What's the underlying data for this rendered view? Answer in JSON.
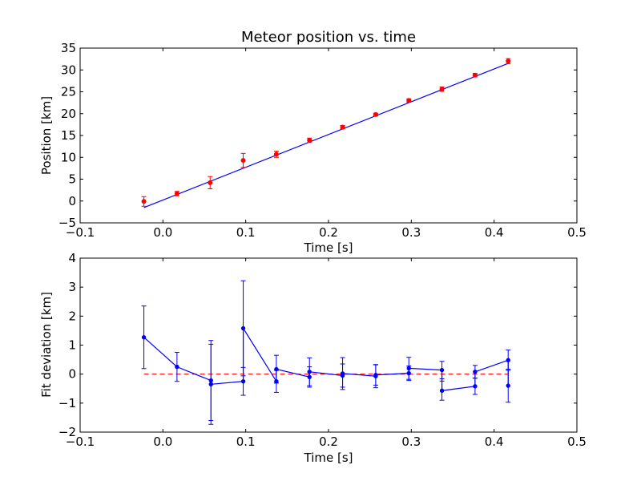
{
  "chart_data": [
    {
      "type": "scatter",
      "title": "Meteor position vs. time",
      "xlabel": "Time [s]",
      "ylabel": "Position [km]",
      "xlim": [
        -0.1,
        0.5
      ],
      "ylim": [
        -5,
        35
      ],
      "xticks": [
        "−0.1",
        "0.0",
        "0.1",
        "0.2",
        "0.3",
        "0.4",
        "0.5"
      ],
      "yticks": [
        "−5",
        "0",
        "5",
        "10",
        "15",
        "20",
        "25",
        "30",
        "35"
      ],
      "grid": false,
      "colors": {
        "points": "#ff0000",
        "errorbars": "#ff0000",
        "fit": "#0000ff"
      },
      "series": [
        {
          "kind": "measured-points-with-error-bars",
          "x": [
            -0.023,
            0.017,
            0.057,
            0.097,
            0.137,
            0.177,
            0.217,
            0.257,
            0.297,
            0.337,
            0.377,
            0.417
          ],
          "y": [
            -0.1,
            1.7,
            4.2,
            9.3,
            10.7,
            13.9,
            16.9,
            19.8,
            23.0,
            25.6,
            28.8,
            32.0
          ],
          "err": [
            1.1,
            0.5,
            1.4,
            1.6,
            0.7,
            0.5,
            0.4,
            0.3,
            0.4,
            0.5,
            0.4,
            0.6
          ]
        },
        {
          "kind": "fit-line",
          "x": [
            -0.023,
            0.417
          ],
          "y": [
            -1.5,
            31.5
          ]
        }
      ]
    },
    {
      "type": "line",
      "xlabel": "Time [s]",
      "ylabel": "Fit deviation [km]",
      "xlim": [
        -0.1,
        0.5
      ],
      "ylim": [
        -2,
        4
      ],
      "xticks": [
        "−0.1",
        "0.0",
        "0.1",
        "0.2",
        "0.3",
        "0.4",
        "0.5"
      ],
      "yticks": [
        "−2",
        "−1",
        "0",
        "1",
        "2",
        "3",
        "4"
      ],
      "grid": false,
      "colors": {
        "deviation": "#0000ff",
        "zero_line": "#ff0000"
      },
      "zero_line": {
        "x": [
          -0.023,
          0.417
        ],
        "y": 0
      },
      "series": [
        {
          "kind": "deviation-line-with-error-bars",
          "x": [
            -0.023,
            0.017,
            0.058,
            0.058,
            0.097,
            0.097,
            0.137,
            0.137,
            0.177,
            0.177,
            0.217,
            0.217,
            0.257,
            0.257,
            0.297,
            0.297,
            0.337,
            0.337,
            0.377,
            0.377,
            0.417,
            0.417
          ],
          "y": [
            1.27,
            0.25,
            -0.22,
            -0.35,
            -0.25,
            1.58,
            -0.25,
            0.17,
            -0.1,
            0.08,
            -0.05,
            0.02,
            -0.07,
            -0.03,
            0.03,
            0.2,
            0.14,
            -0.57,
            -0.42,
            0.08,
            0.48,
            -0.4
          ],
          "err": [
            1.08,
            0.5,
            1.38,
            1.38,
            0.48,
            1.64,
            0.38,
            0.48,
            0.35,
            0.48,
            0.4,
            0.55,
            0.4,
            0.35,
            0.25,
            0.38,
            0.3,
            0.33,
            0.28,
            0.22,
            0.35,
            0.57
          ]
        }
      ]
    }
  ]
}
